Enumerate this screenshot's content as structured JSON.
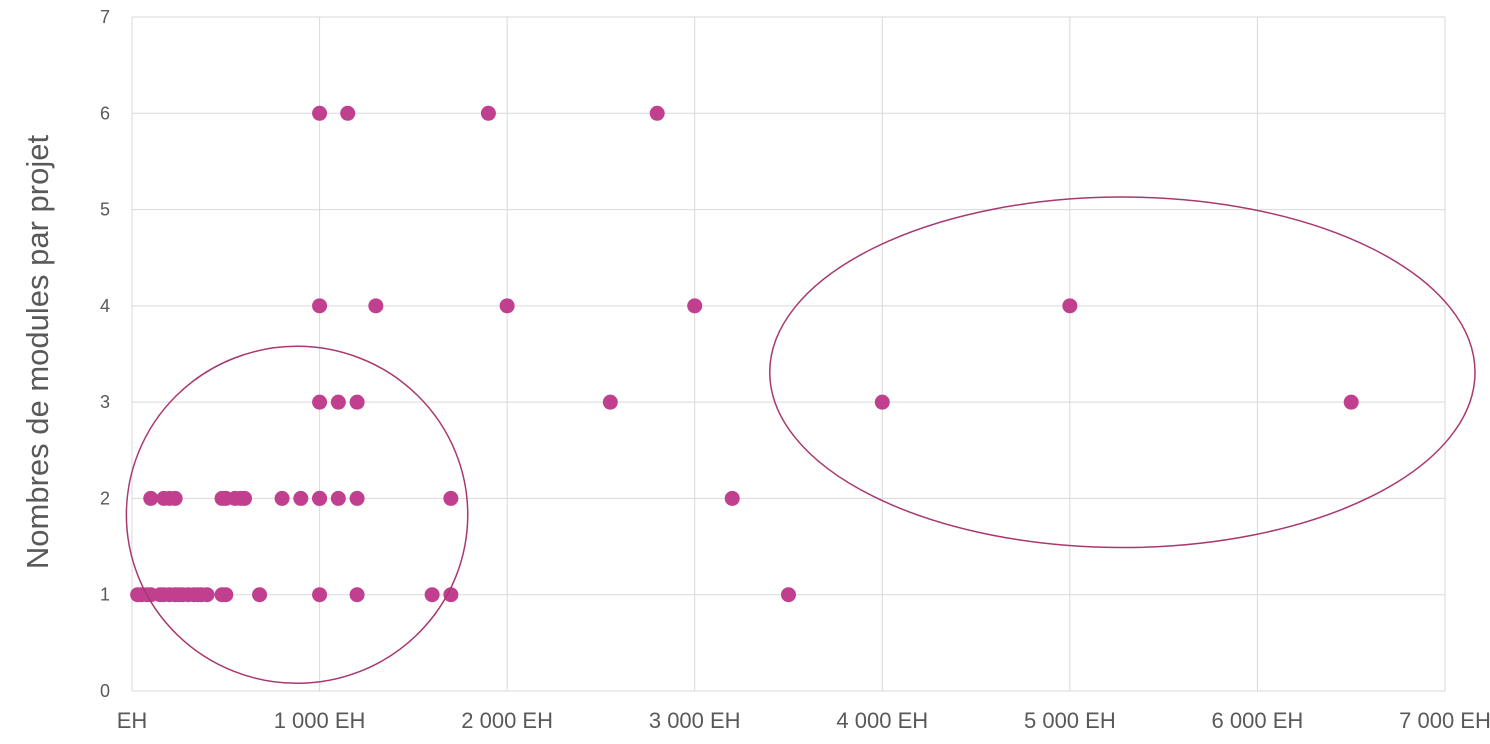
{
  "chart_data": {
    "type": "scatter",
    "title": "",
    "xlabel": "",
    "ylabel": "Nombres de modules par projet",
    "xlim": [
      0,
      7000
    ],
    "ylim": [
      0,
      7
    ],
    "x_ticks": [
      0,
      1000,
      2000,
      3000,
      4000,
      5000,
      6000,
      7000
    ],
    "x_tick_labels": [
      "EH",
      "1 000 EH",
      "2 000 EH",
      "3 000 EH",
      "4 000 EH",
      "5 000 EH",
      "6 000 EH",
      "7 000 EH"
    ],
    "y_ticks": [
      0,
      1,
      2,
      3,
      4,
      5,
      6,
      7
    ],
    "y_tick_labels": [
      "0",
      "1",
      "2",
      "3",
      "4",
      "5",
      "6",
      "7"
    ],
    "grid": true,
    "legend": "none",
    "colors": {
      "points": "#c0408f",
      "highlight": "#a8386f",
      "grid": "#d9d9d9",
      "text": "#595959"
    },
    "series": [
      {
        "x": [
          30,
          50,
          80,
          100,
          150,
          170,
          200,
          230,
          250,
          270,
          300,
          330,
          350,
          370,
          400,
          480,
          500,
          680,
          1000,
          1200,
          1600,
          1700,
          3500,
          100,
          170,
          200,
          230,
          480,
          500,
          550,
          580,
          600,
          800,
          900,
          1000,
          1000,
          1100,
          1200,
          1700,
          3200,
          1000,
          1100,
          1200,
          2550,
          4000,
          6500,
          1000,
          1300,
          2000,
          3000,
          5000,
          1000,
          1150,
          1900,
          2800
        ],
        "y": [
          1,
          1,
          1,
          1,
          1,
          1,
          1,
          1,
          1,
          1,
          1,
          1,
          1,
          1,
          1,
          1,
          1,
          1,
          1,
          1,
          1,
          1,
          1,
          2,
          2,
          2,
          2,
          2,
          2,
          2,
          2,
          2,
          2,
          2,
          2,
          2,
          2,
          2,
          2,
          2,
          3,
          3,
          3,
          3,
          3,
          3,
          4,
          4,
          4,
          4,
          4,
          6,
          6,
          6,
          6
        ]
      }
    ],
    "annotations": [
      {
        "type": "ellipse",
        "center": [
          880,
          1.83
        ],
        "radii": [
          910,
          1.75
        ]
      },
      {
        "type": "ellipse",
        "center": [
          5280,
          3.31
        ],
        "radii": [
          1880,
          1.82
        ]
      }
    ]
  }
}
